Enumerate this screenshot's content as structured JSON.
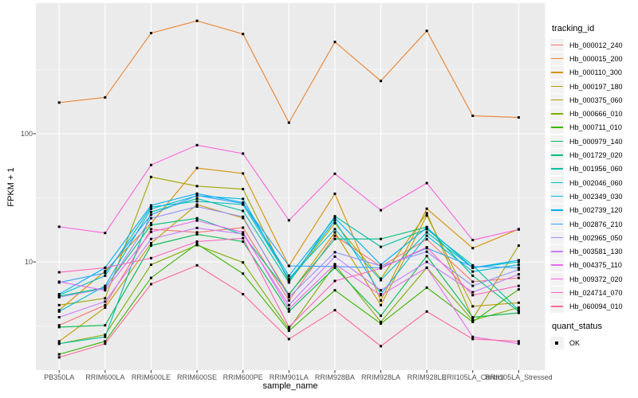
{
  "figure": {
    "background": "#FFFFFF",
    "panel_background": "#EBEBEB",
    "gridline_color": "#FFFFFF",
    "tick_mark_color": "#333333",
    "axis_text_color": "#4D4D4D",
    "point_color": "#000000"
  },
  "chart_data": {
    "type": "line",
    "title": "",
    "xlabel": "sample_name",
    "ylabel": "FPKM + 1",
    "y_scale": "log10",
    "ylim": [
      1.45,
      1040
    ],
    "y_major_ticks": [
      100,
      10
    ],
    "y_minor_gridlines": [
      3.162,
      31.62,
      316.2
    ],
    "grid": true,
    "legend_position": "right",
    "legend_title": "tracking_id",
    "point_marker": {
      "shape": "square",
      "color": "#000000",
      "size": 3
    },
    "quant_legend": {
      "title": "quant_status",
      "items": [
        "OK"
      ]
    },
    "categories": [
      "PB350LA",
      "RRIM600LA",
      "RRIM600LE",
      "RRIM600SE",
      "RRIM600PE",
      "RRIM901LA",
      "RRIM928BA",
      "RRIM928LA",
      "RRIM928LE",
      "RRII105LA_Control",
      "RRII105LA_Stressed"
    ],
    "series": [
      {
        "name": "Hb_000012_240",
        "color": "#F8766D",
        "values": [
          3.2,
          4.6,
          18,
          17,
          18.5,
          5,
          16,
          9.2,
          15,
          7,
          7.5
        ]
      },
      {
        "name": "Hb_000015_200",
        "color": "#EA8331",
        "values": [
          175,
          192,
          610,
          760,
          600,
          122,
          520,
          258,
          635,
          138,
          134
        ]
      },
      {
        "name": "Hb_000110_300",
        "color": "#D89000",
        "values": [
          4.2,
          8.5,
          20,
          54,
          49,
          9.3,
          34,
          5,
          26,
          12.8,
          18
        ]
      },
      {
        "name": "Hb_000197_180",
        "color": "#C09B00",
        "values": [
          2.4,
          4.4,
          14,
          28,
          22,
          5.5,
          17,
          4.6,
          23,
          4.5,
          4.8
        ]
      },
      {
        "name": "Hb_000375_060",
        "color": "#A3A500",
        "values": [
          4.6,
          5.2,
          46,
          39,
          37,
          7,
          20,
          7.4,
          24,
          3.6,
          13.4
        ]
      },
      {
        "name": "Hb_000666_010",
        "color": "#7CAE00",
        "values": [
          2.3,
          2.7,
          9.5,
          13.5,
          9.9,
          3,
          9.5,
          3.4,
          9,
          3.5,
          4.4
        ]
      },
      {
        "name": "Hb_000711_010",
        "color": "#39B600",
        "values": [
          1.9,
          2.4,
          7.5,
          13.8,
          8.1,
          2.9,
          6,
          3.3,
          6.3,
          3.4,
          6.1
        ]
      },
      {
        "name": "Hb_000979_140",
        "color": "#00BB4E",
        "values": [
          3.1,
          3.2,
          13.4,
          16.4,
          14.4,
          4.1,
          9,
          3.8,
          11.1,
          3.7,
          4
        ]
      },
      {
        "name": "Hb_001729_020",
        "color": "#00BF7D",
        "values": [
          5.4,
          6.3,
          19.4,
          21.9,
          16.3,
          5.6,
          15.1,
          15.1,
          18.7,
          7.8,
          4.1
        ]
      },
      {
        "name": "Hb_001956_060",
        "color": "#00C1A3",
        "values": [
          2.3,
          2.6,
          24.5,
          31.2,
          25,
          6.9,
          22.7,
          13.1,
          18,
          9.4,
          4.2
        ]
      },
      {
        "name": "Hb_002046_060",
        "color": "#00BFC4",
        "values": [
          5.5,
          7.8,
          26.8,
          29.7,
          28,
          7.4,
          18,
          7.2,
          17,
          9,
          10
        ]
      },
      {
        "name": "Hb_002349_030",
        "color": "#00BAE0",
        "values": [
          4.1,
          6.5,
          25.9,
          32.8,
          31,
          7.2,
          21,
          5.6,
          16,
          8.4,
          9.5
        ]
      },
      {
        "name": "Hb_002739_120",
        "color": "#00B0F6",
        "values": [
          5.6,
          9,
          27.6,
          34.1,
          29,
          7.8,
          22,
          9.5,
          18.5,
          9,
          10.3
        ]
      },
      {
        "name": "Hb_002876_210",
        "color": "#35A2FF",
        "values": [
          6.9,
          8.2,
          23.3,
          33,
          28.5,
          9.3,
          9.2,
          9,
          12.8,
          9.2,
          9
        ]
      },
      {
        "name": "Hb_002965_050",
        "color": "#9590FF",
        "values": [
          5.3,
          6.2,
          21.9,
          27,
          22.5,
          5.3,
          11.9,
          9.3,
          12,
          6.5,
          8.7
        ]
      },
      {
        "name": "Hb_003581_130",
        "color": "#C77CFF",
        "values": [
          3.7,
          4.9,
          15.1,
          18.4,
          16.5,
          4.6,
          11,
          6,
          10,
          5.8,
          8
        ]
      },
      {
        "name": "Hb_004375_110",
        "color": "#E76BF3",
        "values": [
          7,
          6,
          17.1,
          21,
          17,
          4.3,
          9.6,
          5.5,
          9,
          2.6,
          2.3
        ]
      },
      {
        "name": "Hb_009372_020",
        "color": "#FA62DB",
        "values": [
          18.8,
          16.8,
          57,
          81.5,
          70,
          21.1,
          48.7,
          25.3,
          41.2,
          14.8,
          17.9
        ]
      },
      {
        "name": "Hb_024714_070",
        "color": "#FF62BC",
        "values": [
          8.3,
          9,
          10.7,
          14.4,
          15.3,
          3.1,
          7.1,
          8.9,
          13,
          5.5,
          6.5
        ]
      },
      {
        "name": "Hb_060094_010",
        "color": "#FF6A98",
        "values": [
          1.8,
          2.3,
          6.7,
          9.4,
          5.6,
          2.5,
          4.2,
          2.2,
          4.1,
          2.5,
          2.4
        ]
      }
    ]
  }
}
